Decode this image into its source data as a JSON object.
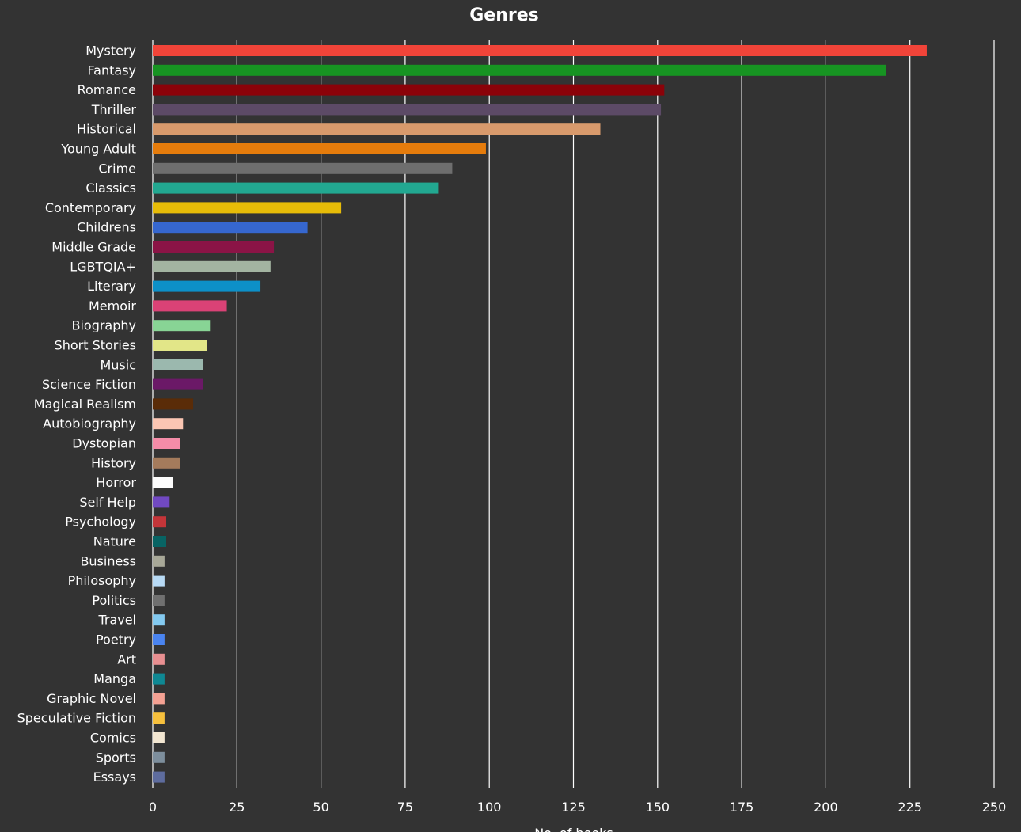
{
  "chart_data": {
    "type": "bar",
    "orientation": "horizontal",
    "title": "Genres",
    "xlabel": "No. of books",
    "ylabel": "",
    "xlim": [
      0,
      250
    ],
    "xticks": [
      "0",
      "25",
      "50",
      "75",
      "100",
      "125",
      "150",
      "175",
      "200",
      "225",
      "250"
    ],
    "grid": true,
    "categories": [
      "Mystery",
      "Fantasy",
      "Romance",
      "Thriller",
      "Historical",
      "Young Adult",
      "Crime",
      "Classics",
      "Contemporary",
      "Childrens",
      "Middle Grade",
      "LGBTQIA+",
      "Literary",
      "Memoir",
      "Biography",
      "Short Stories",
      "Music",
      "Science Fiction",
      "Magical Realism",
      "Autobiography",
      "Dystopian",
      "History",
      "Horror",
      "Self Help",
      "Psychology",
      "Nature",
      "Business",
      "Philosophy",
      "Politics",
      "Travel",
      "Poetry",
      "Art",
      "Manga",
      "Graphic Novel",
      "Speculative Fiction",
      "Comics",
      "Sports",
      "Essays"
    ],
    "values": [
      230,
      218,
      152,
      151,
      133,
      99,
      89,
      85,
      56,
      46,
      36,
      35,
      32,
      22,
      17,
      16,
      15,
      15,
      12,
      9,
      8,
      8,
      6,
      5,
      4,
      4,
      3.5,
      3.5,
      3.5,
      3.5,
      3.5,
      3.5,
      3.5,
      3.5,
      3.5,
      3.5,
      3.5,
      3.5
    ],
    "colors": [
      "#f14439",
      "#179422",
      "#8b0209",
      "#5c4a66",
      "#d89a6c",
      "#e57c0c",
      "#6e6e6e",
      "#22a891",
      "#e7bc08",
      "#3667cf",
      "#8b1446",
      "#a3b4a1",
      "#0d90c8",
      "#da4276",
      "#88d495",
      "#e2e688",
      "#9bb8ae",
      "#6b1967",
      "#5a2c08",
      "#fbc6b3",
      "#f48ca8",
      "#a47b5c",
      "#fcfcfc",
      "#7149c2",
      "#c43539",
      "#086464",
      "#a8a898",
      "#b8daf5",
      "#707070",
      "#84caf0",
      "#4a84f0",
      "#e88f91",
      "#0f8893",
      "#f4a193",
      "#f6c03d",
      "#f2e6d1",
      "#7d8e9c",
      "#5e6c9e"
    ]
  }
}
